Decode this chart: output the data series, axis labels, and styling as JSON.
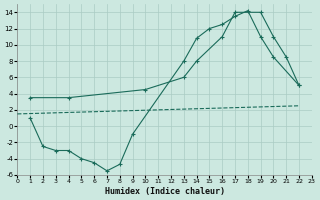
{
  "xlabel": "Humidex (Indice chaleur)",
  "xlim": [
    0,
    23
  ],
  "ylim": [
    -6,
    15
  ],
  "xticks": [
    0,
    1,
    2,
    3,
    4,
    5,
    6,
    7,
    8,
    9,
    10,
    11,
    12,
    13,
    14,
    15,
    16,
    17,
    18,
    19,
    20,
    21,
    22,
    23
  ],
  "yticks": [
    -6,
    -4,
    -2,
    0,
    2,
    4,
    6,
    8,
    10,
    12,
    14
  ],
  "bg_color": "#cce8e0",
  "grid_color": "#aaccC4",
  "line_color": "#1a6b5a",
  "line1_x": [
    1,
    2,
    3,
    4,
    5,
    6,
    7,
    8,
    9,
    13,
    14,
    15,
    16,
    17,
    18,
    19,
    20,
    22
  ],
  "line1_y": [
    1.0,
    -2.5,
    -3.0,
    -3.0,
    -4.0,
    -4.5,
    -5.5,
    -4.7,
    -1.0,
    8.0,
    10.8,
    12.0,
    12.5,
    13.5,
    14.2,
    11.0,
    8.5,
    5.0
  ],
  "line2_x": [
    0,
    22
  ],
  "line2_y": [
    1.5,
    2.5
  ],
  "line3_x": [
    1,
    4,
    10,
    13,
    14,
    16,
    17,
    19,
    20,
    21,
    22
  ],
  "line3_y": [
    3.5,
    3.5,
    4.5,
    6.0,
    8.0,
    11.0,
    14.0,
    14.0,
    11.0,
    8.5,
    5.0
  ]
}
